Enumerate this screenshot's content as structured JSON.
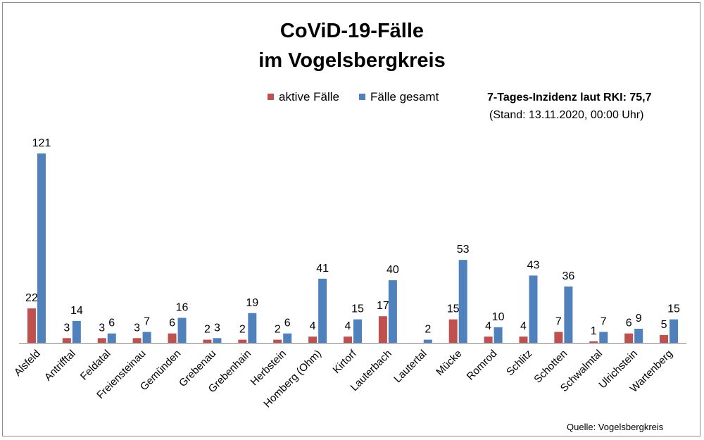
{
  "chart_data": {
    "type": "bar",
    "title": [
      "CoViD-19-Fälle",
      "im Vogelsbergkreis"
    ],
    "categories": [
      "Alsfeld",
      "Antrifftal",
      "Feldatal",
      "Freiensteinau",
      "Gemünden",
      "Grebenau",
      "Grebenhain",
      "Herbstein",
      "Homberg (Ohm)",
      "Kirtorf",
      "Lauterbach",
      "Lautertal",
      "Mücke",
      "Romrod",
      "Schlitz",
      "Schotten",
      "Schwalmtal",
      "Ulrichstein",
      "Wartenberg"
    ],
    "series": [
      {
        "name": "aktive Fälle",
        "color": "#c0504d",
        "values": [
          22,
          3,
          3,
          3,
          6,
          2,
          2,
          2,
          4,
          4,
          17,
          null,
          15,
          4,
          4,
          7,
          1,
          6,
          5
        ]
      },
      {
        "name": "Fälle gesamt",
        "color": "#4f81bd",
        "values": [
          121,
          14,
          6,
          7,
          16,
          3,
          19,
          6,
          41,
          15,
          40,
          2,
          53,
          10,
          43,
          36,
          7,
          9,
          15
        ]
      }
    ],
    "ylim": [
      0,
      121
    ],
    "grid": false,
    "legend": "top"
  },
  "annotations": {
    "incidence": "7-Tages-Inzidenz laut RKI: 75,7",
    "stand": "(Stand: 13.11.2020, 00:00 Uhr)",
    "source": "Quelle: Vogelsbergkreis"
  }
}
